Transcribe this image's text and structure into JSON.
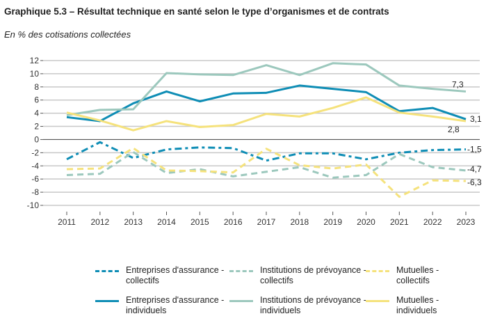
{
  "title": "Graphique 5.3 – Résultat technique en santé selon le type d’organismes et de contrats",
  "subtitle": "En % des cotisations collectées",
  "chart_data": {
    "type": "line",
    "title": "Graphique 5.3 – Résultat technique en santé selon le type d’organismes et de contrats",
    "subtitle": "En % des cotisations collectées",
    "x": [
      2011,
      2012,
      2013,
      2014,
      2015,
      2016,
      2017,
      2018,
      2019,
      2020,
      2021,
      2022,
      2023
    ],
    "ylim": [
      -10,
      12
    ],
    "yticks": [
      12,
      10,
      8,
      6,
      4,
      2,
      0,
      -2,
      -4,
      -6,
      -8,
      -10
    ],
    "grid": true,
    "legend_placement": "bottom",
    "series": [
      {
        "name": "Entreprises d'assurance - collectifs",
        "color": "#0e8db5",
        "style": "dash-dot",
        "values": [
          -3.0,
          -0.4,
          -2.8,
          -1.5,
          -1.2,
          -1.3,
          -3.2,
          -2.1,
          -2.1,
          -3.0,
          -2.0,
          -1.6,
          -1.5
        ],
        "end_label": "-1,5"
      },
      {
        "name": "Institutions de prévoyance - collectifs",
        "color": "#9cc8bd",
        "style": "dash",
        "values": [
          -5.4,
          -5.2,
          -1.9,
          -5.1,
          -4.5,
          -5.6,
          -4.9,
          -4.2,
          -5.8,
          -5.4,
          -2.2,
          -4.2,
          -4.7
        ],
        "end_label": "-4,7"
      },
      {
        "name": "Mutuelles - collectifs",
        "color": "#f5e27c",
        "style": "dash",
        "values": [
          -4.5,
          -4.4,
          -1.3,
          -4.7,
          -4.8,
          -5.0,
          -1.4,
          -3.9,
          -4.4,
          -3.8,
          -8.7,
          -6.2,
          -6.3
        ],
        "end_label": "-6,3"
      },
      {
        "name": "Entreprises d'assurance - individuels",
        "color": "#0e8db5",
        "style": "solid",
        "values": [
          3.4,
          2.8,
          5.5,
          7.3,
          5.8,
          7.0,
          7.1,
          8.2,
          7.7,
          7.2,
          4.3,
          4.8,
          3.1
        ],
        "end_label": "3,1"
      },
      {
        "name": "Institutions de prévoyance - individuels",
        "color": "#9cc8bd",
        "style": "solid",
        "values": [
          3.7,
          4.5,
          4.6,
          10.1,
          9.9,
          9.8,
          11.3,
          9.8,
          11.6,
          11.4,
          8.2,
          7.7,
          7.3
        ],
        "end_label": "7,3"
      },
      {
        "name": "Mutuelles - individuels",
        "color": "#f5e27c",
        "style": "solid",
        "values": [
          4.1,
          2.9,
          1.4,
          2.8,
          1.9,
          2.2,
          3.9,
          3.5,
          4.8,
          6.4,
          4.1,
          3.5,
          2.8
        ],
        "end_label": "2,8"
      }
    ]
  },
  "legend": [
    {
      "line1": "Entreprises d'assurance -",
      "line2": "collectifs"
    },
    {
      "line1": "Institutions de prévoyance -",
      "line2": "collectifs"
    },
    {
      "line1": "Mutuelles -",
      "line2": "collectifs"
    },
    {
      "line1": "Entreprises d'assurance -",
      "line2": "individuels"
    },
    {
      "line1": "Institutions de prévoyance -",
      "line2": "individuels"
    },
    {
      "line1": "Mutuelles -",
      "line2": "individuels"
    }
  ]
}
